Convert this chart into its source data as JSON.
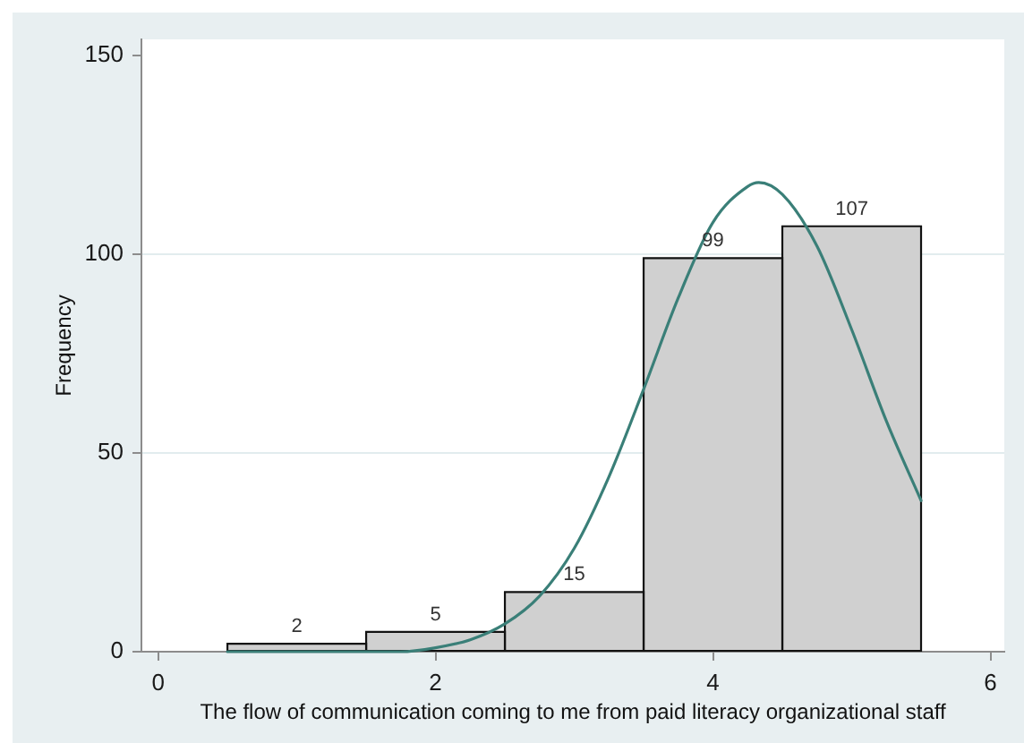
{
  "chart_data": {
    "type": "histogram",
    "xlabel": "The flow of communication coming to me from paid literacy organizational staff",
    "ylabel": "Frequency",
    "series": [
      {
        "bins": [
          0.5,
          1.5,
          2.5,
          3.5,
          4.5,
          5.5
        ],
        "values": [
          2,
          5,
          15,
          99,
          107
        ],
        "value_labels": [
          "2",
          "5",
          "15",
          "99",
          "107"
        ],
        "color": "#d0d0d0"
      },
      {
        "type": "line",
        "x": [
          0.5,
          0.75,
          1,
          1.25,
          1.5,
          1.75,
          2,
          2.25,
          2.5,
          2.75,
          3,
          3.25,
          3.5,
          3.75,
          4,
          4.25,
          4.33,
          4.5,
          4.75,
          5,
          5.25,
          5.5
        ],
        "values": [
          0,
          0,
          0,
          0,
          0,
          0,
          1,
          3,
          7,
          14,
          26,
          44,
          66,
          89,
          108,
          117,
          118,
          115,
          102,
          81,
          58,
          38
        ],
        "color": "#3a7f78"
      }
    ],
    "xlim": [
      -0.12,
      6.1
    ],
    "ylim": [
      0,
      154
    ],
    "xticks": [
      0,
      2,
      4,
      6
    ],
    "yticks": [
      0,
      50,
      100,
      150
    ],
    "grid": "y",
    "marker": "none"
  }
}
